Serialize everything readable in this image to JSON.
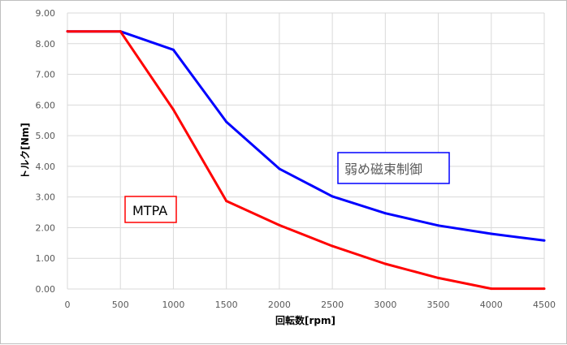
{
  "chart_data": {
    "type": "line",
    "xlabel": "回転数[rpm]",
    "ylabel": "トルク[Nm]",
    "xlim": [
      0,
      4500
    ],
    "ylim": [
      0,
      9
    ],
    "x_ticks": [
      "0",
      "500",
      "1000",
      "1500",
      "2000",
      "2500",
      "3000",
      "3500",
      "4000",
      "4500"
    ],
    "y_ticks": [
      "0.00",
      "1.00",
      "2.00",
      "3.00",
      "4.00",
      "5.00",
      "6.00",
      "7.00",
      "8.00",
      "9.00"
    ],
    "grid": true,
    "x": [
      0,
      500,
      1000,
      1500,
      2000,
      2500,
      3000,
      3500,
      4000,
      4500
    ],
    "series": [
      {
        "name": "弱め磁束制御",
        "color": "#0000ff",
        "values": [
          8.4,
          8.4,
          7.8,
          5.45,
          3.92,
          3.02,
          2.47,
          2.07,
          1.8,
          1.58
        ]
      },
      {
        "name": "MTPA",
        "color": "#ff0000",
        "values": [
          8.4,
          8.4,
          5.85,
          2.87,
          2.08,
          1.4,
          0.82,
          0.36,
          0.01,
          0.01
        ]
      }
    ],
    "annotations": [
      {
        "text": "弱め磁束制御",
        "series": "弱め磁束制御",
        "box_color": "#0000ff"
      },
      {
        "text": "MTPA",
        "series": "MTPA",
        "box_color": "#ff0000"
      }
    ]
  }
}
